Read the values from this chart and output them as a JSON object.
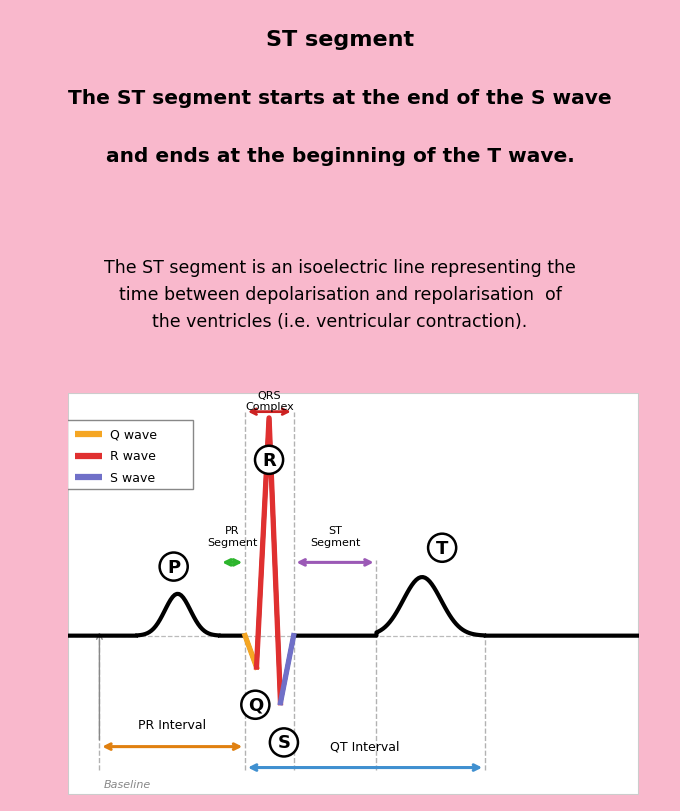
{
  "bg_color": "#f9b8cc",
  "title1": "ST segment",
  "title2": "The ST segment starts at the end of the S wave",
  "title3": "and ends at the beginning of the T wave.",
  "body_text": "The ST segment is an isoelectric line representing the\ntime between depolarisation and repolarisation  of\nthe ventricles (i.e. ventricular contraction).",
  "legend_items": [
    {
      "label": "Q wave",
      "color": "#f5a623"
    },
    {
      "label": "R wave",
      "color": "#e03030"
    },
    {
      "label": "S wave",
      "color": "#7070c8"
    }
  ],
  "segment_labels": [
    "PR\nSegment",
    "ST\nSegment"
  ],
  "interval_labels": [
    "PR Interval",
    "QT Interval"
  ],
  "baseline_label": "Baseline",
  "qrs_label": "QRS\nComplex",
  "arrow_colors": {
    "pr_segment": "#2db52d",
    "st_segment": "#9b59b6",
    "pr_interval": "#e08010",
    "qt_interval": "#4090d0",
    "qrs": "#cc2222",
    "q_wave": "#f5a623",
    "r_wave": "#e03030",
    "s_wave": "#7070c8"
  }
}
